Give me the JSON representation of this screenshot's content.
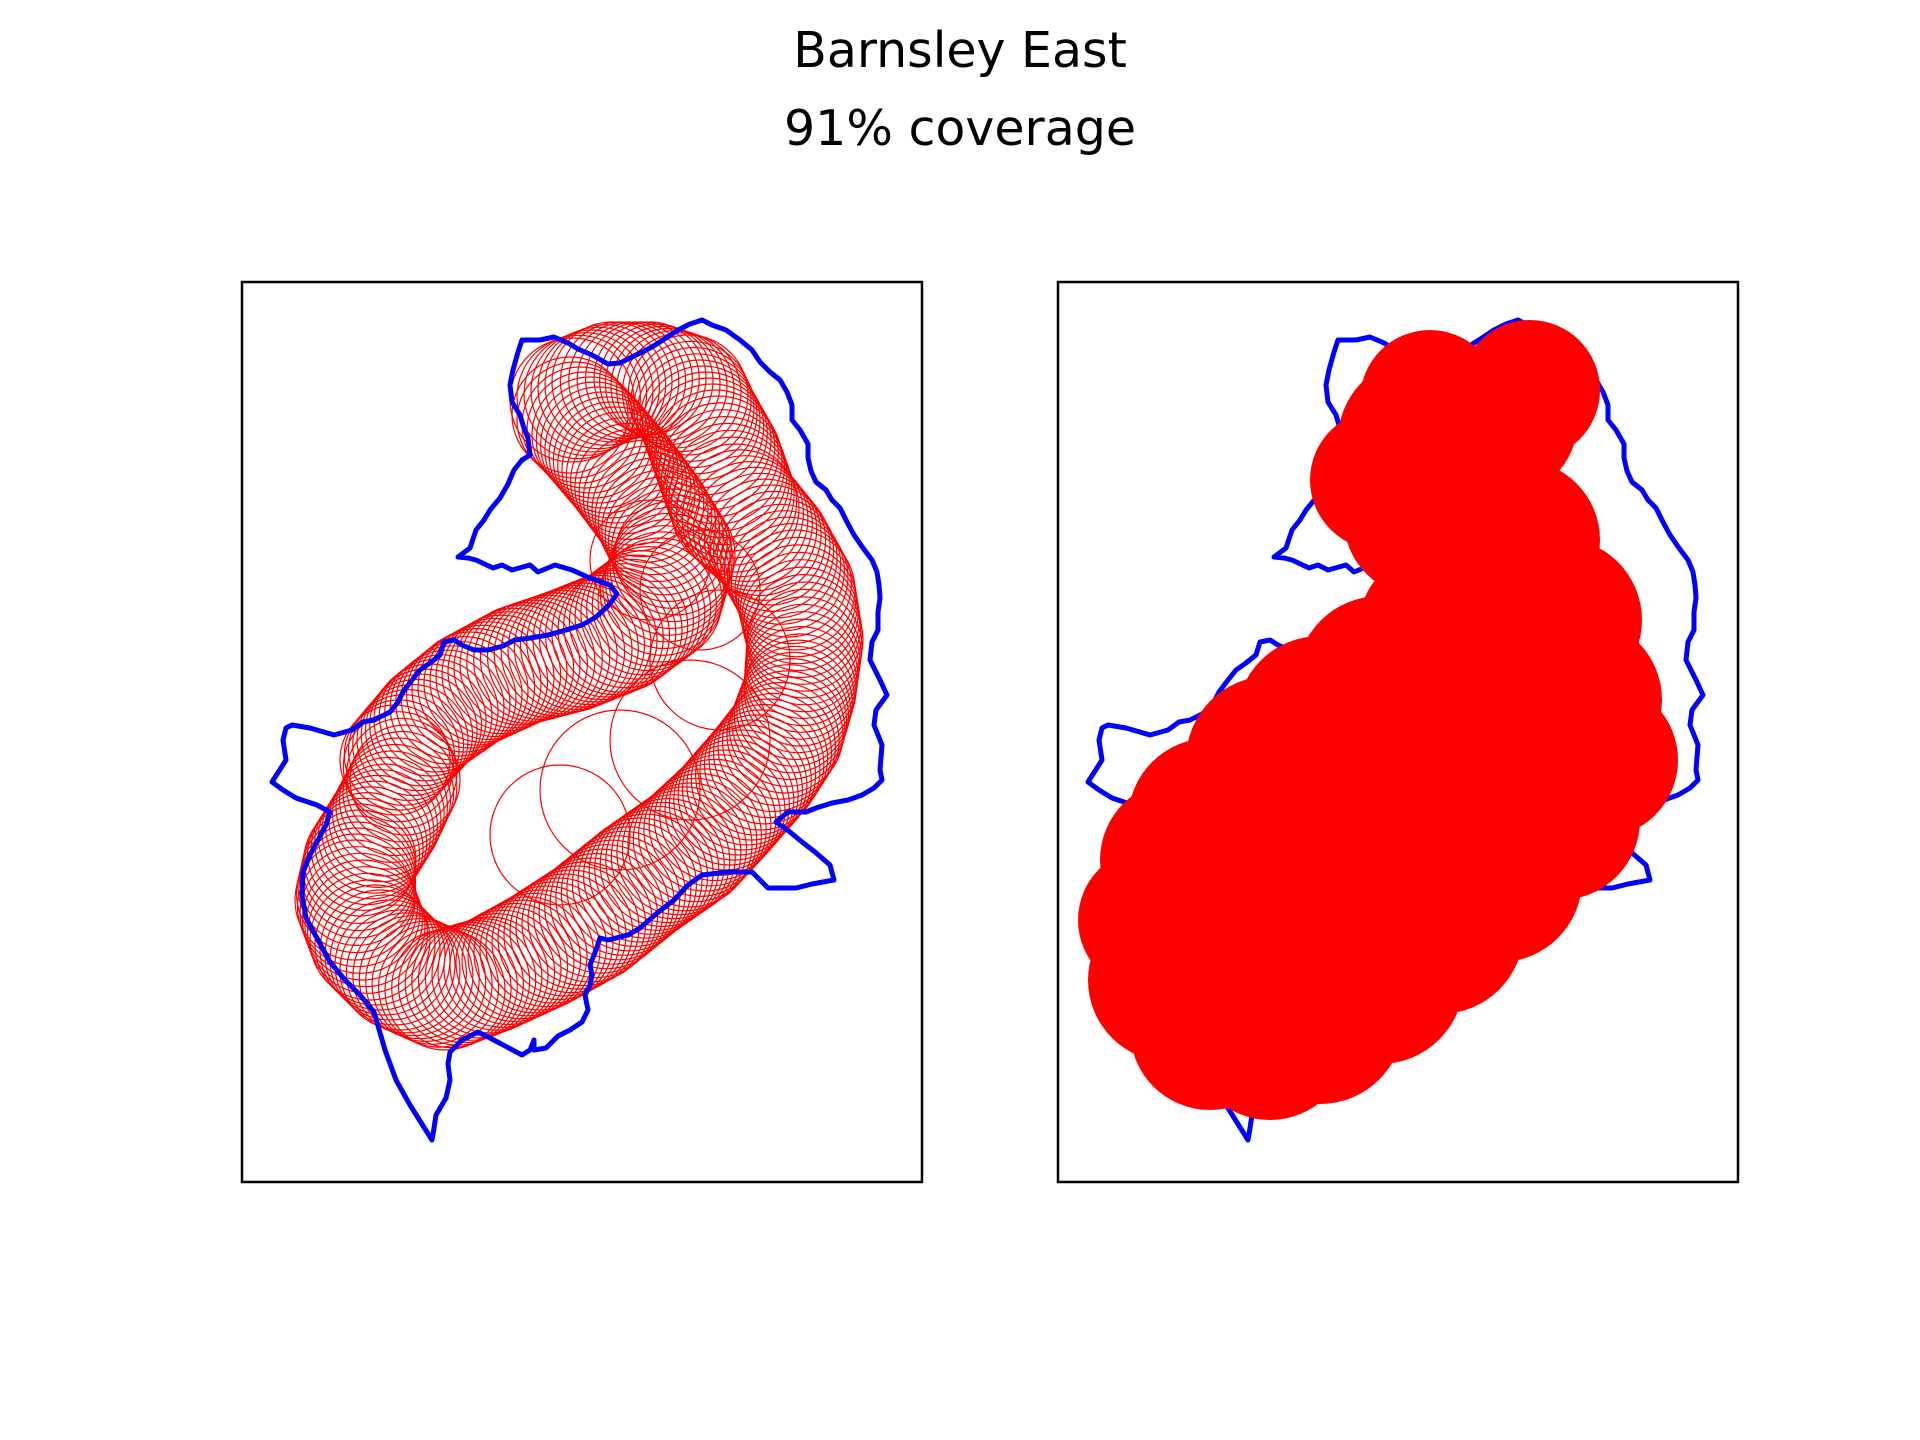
{
  "figure": {
    "title": "Barnsley East",
    "subtitle": "91% coverage"
  },
  "colors": {
    "boundary": "#0000ff",
    "coverage": "#ff0000",
    "frame": "#000000",
    "background": "#ffffff"
  },
  "panels": [
    {
      "name": "circle-outlines",
      "style": "outline"
    },
    {
      "name": "circle-union",
      "style": "filled"
    }
  ]
}
